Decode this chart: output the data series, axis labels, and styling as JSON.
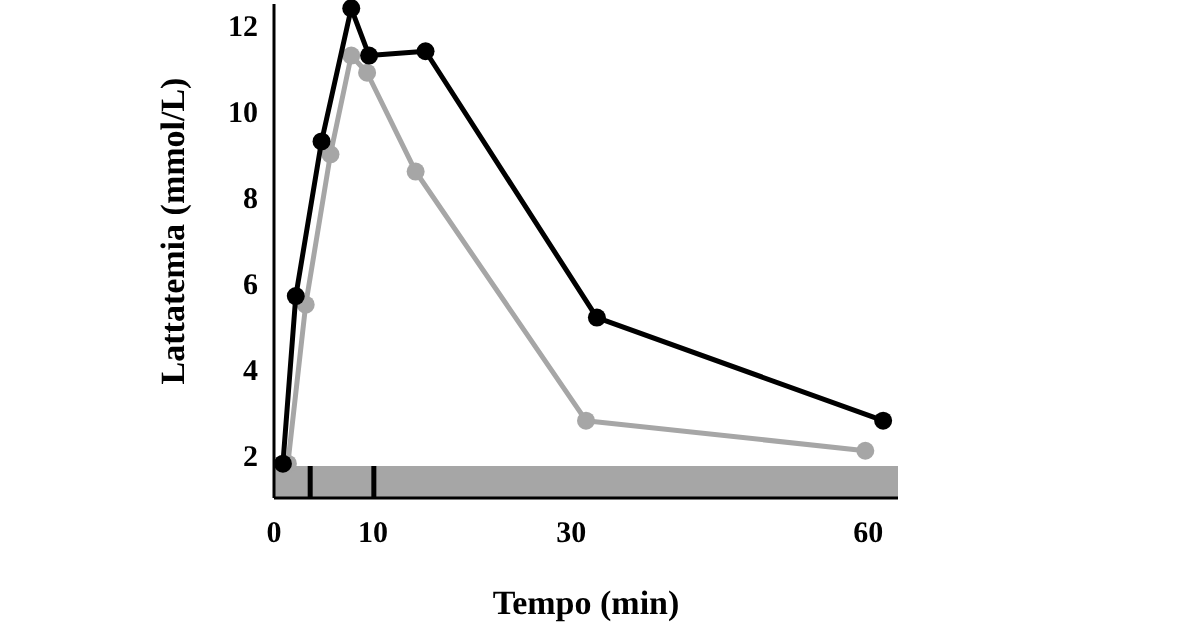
{
  "chart_data": {
    "type": "line",
    "xlabel": "Tempo (min)",
    "ylabel": "Lattatemia (mmol/L)",
    "xlim": [
      0,
      63
    ],
    "xticks": [
      0,
      10,
      30,
      60
    ],
    "ylim": [
      1,
      12.5
    ],
    "yticks": [
      2,
      4,
      6,
      8,
      10,
      12
    ],
    "marker": "circle",
    "grid": false,
    "series": [
      {
        "color": "#000000",
        "x": [
          0.9,
          2.2,
          4.8,
          7.8,
          9.6,
          15.3,
          32.6,
          61.5
        ],
        "values": [
          1.8,
          5.7,
          9.3,
          12.4,
          11.3,
          11.4,
          5.2,
          2.8
        ]
      },
      {
        "color": "#a6a6a6",
        "x": [
          1.4,
          3.2,
          5.7,
          7.8,
          9.4,
          14.3,
          31.5,
          59.7
        ],
        "values": [
          1.8,
          5.5,
          9.0,
          11.3,
          10.9,
          8.6,
          2.8,
          2.1
        ]
      }
    ]
  }
}
